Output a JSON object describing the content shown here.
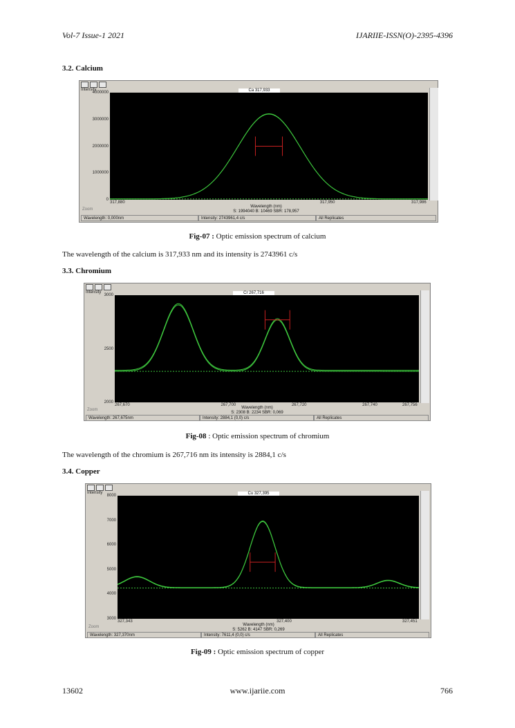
{
  "header": {
    "left": "Vol-7 Issue-1 2021",
    "right": "IJARIIE-ISSN(O)-2395-4396"
  },
  "sections": {
    "calcium": "3.2. Calcium",
    "chromium": "3.3. Chromium",
    "copper": "3.4. Copper"
  },
  "paragraphs": {
    "calcium": "The wavelength of the calcium is 317,933 nm and its intensity is 2743961 c/s",
    "chromium": "The wavelength of the chromium is 267,716 nm its intensity is 2884,1 c/s"
  },
  "captions": {
    "fig07": {
      "label": "Fig-07 :",
      "text": " Optic emission spectrum of calcium"
    },
    "fig08": {
      "label": "Fig-08",
      "text": " : Optic emission spectrum of chromium"
    },
    "fig09": {
      "label": "Fig-09 :",
      "text": " Optic emission spectrum of copper"
    }
  },
  "footer": {
    "left": "13602",
    "center": "www.ijariie.com",
    "right": "766"
  },
  "colors": {
    "plot_bg": "#000000",
    "spectrum": "#3ec83e",
    "marker": "#c82020"
  },
  "charts": [
    {
      "id": "ca",
      "type": "line",
      "title": "Ca 317,933",
      "ylabel": "Intensity",
      "xlabel": "Wavelength (nm)",
      "yticks": [
        "4000000",
        "3000000",
        "2000000",
        "1000000",
        "0"
      ],
      "xticks": [
        "317,880",
        "317,950",
        "317,986"
      ],
      "ylim": [
        0,
        4000000
      ],
      "xlim": [
        317.88,
        317.986
      ],
      "zoom": "Zoom",
      "info_line": "S: 1994040 B: 10469 SBR: 178,957",
      "status": [
        "Wavelength: 0,000nm",
        "Intensity: 2743961,4 c/s",
        "All Replicates"
      ],
      "peak": {
        "center": 317.933,
        "height": 3200000,
        "width": 0.0105,
        "baseline": 30000,
        "marker_level": 2000000,
        "marker_halfwidth": 0.0045
      },
      "bumps": []
    },
    {
      "id": "cr",
      "type": "line",
      "title": "Cr 267,716",
      "ylabel": "Intensity",
      "xlabel": "Wavelength (nm)",
      "yticks": [
        "3000",
        "2500",
        "2000"
      ],
      "xticks": [
        "267,670",
        "267,700",
        "267,720",
        "267,740",
        "267,756"
      ],
      "ylim": [
        2000,
        3000
      ],
      "xlim": [
        267.67,
        267.756
      ],
      "zoom": "Zoom",
      "info_line": "S: 2308 B: 2234 SBR: 0,069",
      "status": [
        "Wavelength: 267,675nm",
        "Intensity: 2884,1 (0,0) c/s",
        "All Replicates"
      ],
      "peak": {
        "center": 267.716,
        "height": 2770,
        "width": 0.0035,
        "baseline": 2290,
        "marker_level": 2770,
        "marker_halfwidth": 0.0035
      },
      "bumps": [
        {
          "center": 267.688,
          "height": 2910,
          "width": 0.0042
        }
      ]
    },
    {
      "id": "cu",
      "type": "line",
      "title": "Cu 327,395",
      "ylabel": "Intensity",
      "xlabel": "Wavelength (nm)",
      "yticks": [
        "8000",
        "7000",
        "6000",
        "5000",
        "4000",
        "3000"
      ],
      "xticks": [
        "327,343",
        "327,400",
        "327,451"
      ],
      "ylim": [
        3000,
        8000
      ],
      "xlim": [
        327.343,
        327.451
      ],
      "zoom": "Zoom",
      "info_line": "S: 5262 B: 4147 SBR: 0,269",
      "status": [
        "Wavelength: 327,370nm",
        "Intensity: 7611,4 (0,0) c/s",
        "All Replicates"
      ],
      "peak": {
        "center": 327.395,
        "height": 6950,
        "width": 0.0045,
        "baseline": 4250,
        "marker_level": 5300,
        "marker_halfwidth": 0.0045
      },
      "bumps": [
        {
          "center": 327.35,
          "height": 4700,
          "width": 0.0045
        },
        {
          "center": 327.44,
          "height": 4550,
          "width": 0.004
        }
      ]
    }
  ]
}
